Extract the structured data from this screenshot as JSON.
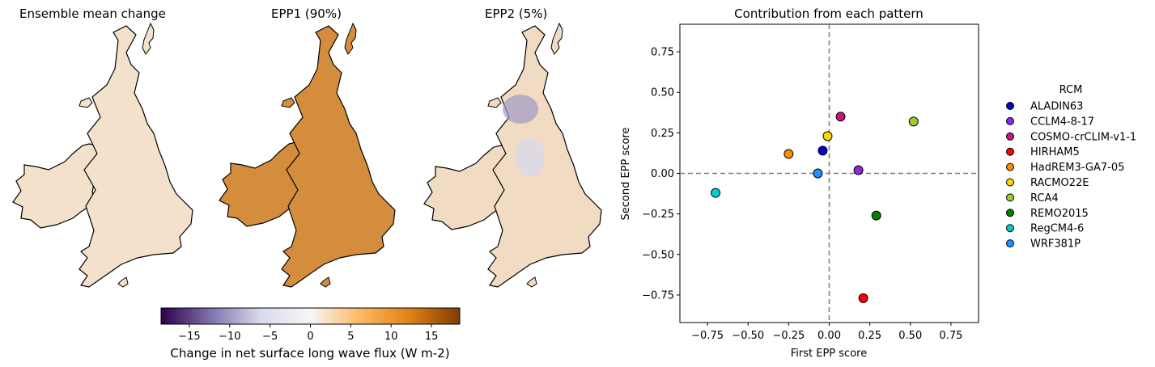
{
  "maps": [
    {
      "title": "Ensemble mean change",
      "level": 0.08
    },
    {
      "title": "EPP1 (90%)",
      "level": 0.75
    },
    {
      "title": "EPP2 (5%)",
      "level": 0.12
    }
  ],
  "colorbar": {
    "label": "Change in net surface long wave flux (W m-2)",
    "ticks": [
      "−15",
      "−10",
      "−5",
      "0",
      "5",
      "10",
      "15"
    ],
    "range": [
      -18.5,
      18.5
    ],
    "colors": [
      "#2d004b",
      "#8073ac",
      "#d8daeb",
      "#f7f7f7",
      "#fdb863",
      "#e08214",
      "#7f3b08"
    ]
  },
  "chart_data": {
    "type": "scatter",
    "title": "Contribution from each pattern",
    "xlabel": "First EPP score",
    "ylabel": "Second EPP score",
    "xlim": [
      -0.92,
      0.92
    ],
    "ylim": [
      -0.92,
      0.92
    ],
    "xticks": [
      "−0.75",
      "−0.50",
      "−0.25",
      "0.00",
      "0.25",
      "0.50",
      "0.75"
    ],
    "yticks": [
      "0.75",
      "0.50",
      "0.25",
      "0.00",
      "−0.25",
      "−0.50",
      "−0.75"
    ],
    "reference_lines": {
      "x": 0,
      "y": 0,
      "style": "dashed"
    },
    "legend_title": "RCM",
    "legend_position": "right",
    "points": [
      {
        "name": "ALADIN63",
        "color": "#0000cd",
        "x": -0.04,
        "y": 0.14
      },
      {
        "name": "CCLM4-8-17",
        "color": "#8a2be2",
        "x": 0.18,
        "y": 0.02
      },
      {
        "name": "COSMO-crCLIM-v1-1",
        "color": "#c71585",
        "x": 0.07,
        "y": 0.35
      },
      {
        "name": "HIRHAM5",
        "color": "#ff0000",
        "x": 0.21,
        "y": -0.77
      },
      {
        "name": "HadREM3-GA7-05",
        "color": "#ff8c00",
        "x": -0.25,
        "y": 0.12
      },
      {
        "name": "RACMO22E",
        "color": "#ffd700",
        "x": -0.01,
        "y": 0.23
      },
      {
        "name": "RCA4",
        "color": "#9acd32",
        "x": 0.52,
        "y": 0.32
      },
      {
        "name": "REMO2015",
        "color": "#008000",
        "x": 0.29,
        "y": -0.26
      },
      {
        "name": "RegCM4-6",
        "color": "#00ced1",
        "x": -0.7,
        "y": -0.12
      },
      {
        "name": "WRF381P",
        "color": "#1e90ff",
        "x": -0.07,
        "y": 0.0
      }
    ]
  }
}
